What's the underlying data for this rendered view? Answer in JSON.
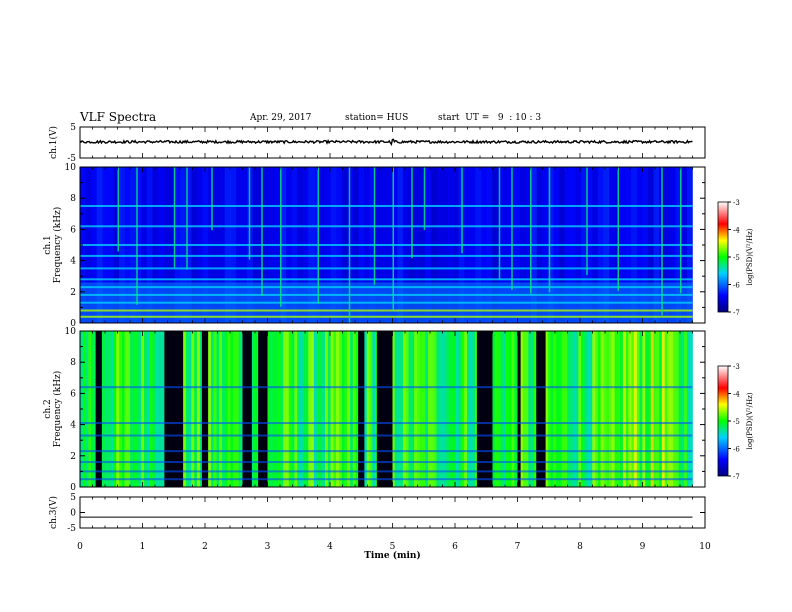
{
  "header": {
    "title": "VLF Spectra",
    "date": "Apr. 29, 2017",
    "station": "station= HUS",
    "start": "start  UT =   9  : 10 : 3"
  },
  "chart_data": [
    {
      "type": "line",
      "panel": "ch1-waveform",
      "ylabel": "ch.1(V)",
      "ylim": [
        -5,
        5
      ],
      "yticks": [
        "5",
        "-5"
      ],
      "description_values": {
        "baseline": 0.2,
        "noise_amplitude": 0.4,
        "spike_time_min": 5.0
      }
    },
    {
      "type": "heatmap",
      "panel": "ch1-spectrogram",
      "ylabel": "ch.1 Frequency (kHz)",
      "ylim": [
        0,
        10
      ],
      "yticks": [
        "0",
        "2",
        "4",
        "6",
        "8",
        "10"
      ],
      "colorbar": {
        "label": "log(PSD)(V²/Hz)",
        "ticks": [
          "-3",
          "-4",
          "-5",
          "-6",
          "-7"
        ],
        "range": [
          -7,
          -3
        ]
      },
      "hband_freqs_khz": [
        0.4,
        0.8,
        1.3,
        1.8,
        2.3,
        2.8,
        3.5,
        4.3,
        5.0,
        6.2,
        7.5
      ],
      "spike_times_min": [
        0.6,
        0.9,
        1.5,
        1.7,
        2.1,
        2.7,
        2.9,
        3.2,
        3.8,
        4.3,
        4.7,
        5.0,
        5.3,
        5.5,
        6.1,
        6.7,
        6.9,
        7.2,
        7.5,
        8.1,
        8.6,
        9.3,
        9.6
      ]
    },
    {
      "type": "heatmap",
      "panel": "ch2-spectrogram",
      "ylabel": "ch.2 Frequency (kHz)",
      "ylim": [
        0,
        10
      ],
      "yticks": [
        "0",
        "2",
        "4",
        "6",
        "8",
        "10"
      ],
      "colorbar": {
        "label": "log(PSD)(V²/Hz)",
        "ticks": [
          "-3",
          "-4",
          "-5",
          "-6",
          "-7"
        ],
        "range": [
          -7,
          -3
        ]
      },
      "dark_intervals_min": [
        [
          0.25,
          0.35
        ],
        [
          1.35,
          1.65
        ],
        [
          1.95,
          2.05
        ],
        [
          2.6,
          2.75
        ],
        [
          2.85,
          3.0
        ],
        [
          4.45,
          4.55
        ],
        [
          4.75,
          5.0
        ],
        [
          6.35,
          6.6
        ],
        [
          7.0,
          7.05
        ],
        [
          7.3,
          7.45
        ]
      ],
      "hband_freqs_khz": [
        0.5,
        1.0,
        1.6,
        2.3,
        3.3,
        4.1,
        6.4
      ]
    },
    {
      "type": "line",
      "panel": "ch3-waveform",
      "ylabel": "ch.3(V)",
      "ylim": [
        -5,
        5
      ],
      "yticks": [
        "5",
        "0",
        "-5"
      ],
      "values_constant": -1.5
    }
  ],
  "xaxis": {
    "label": "Time  (min)",
    "xlim": [
      0,
      10
    ],
    "ticks": [
      "0",
      "1",
      "2",
      "3",
      "4",
      "5",
      "6",
      "7",
      "8",
      "9",
      "10"
    ],
    "data_end_min": 9.8
  }
}
